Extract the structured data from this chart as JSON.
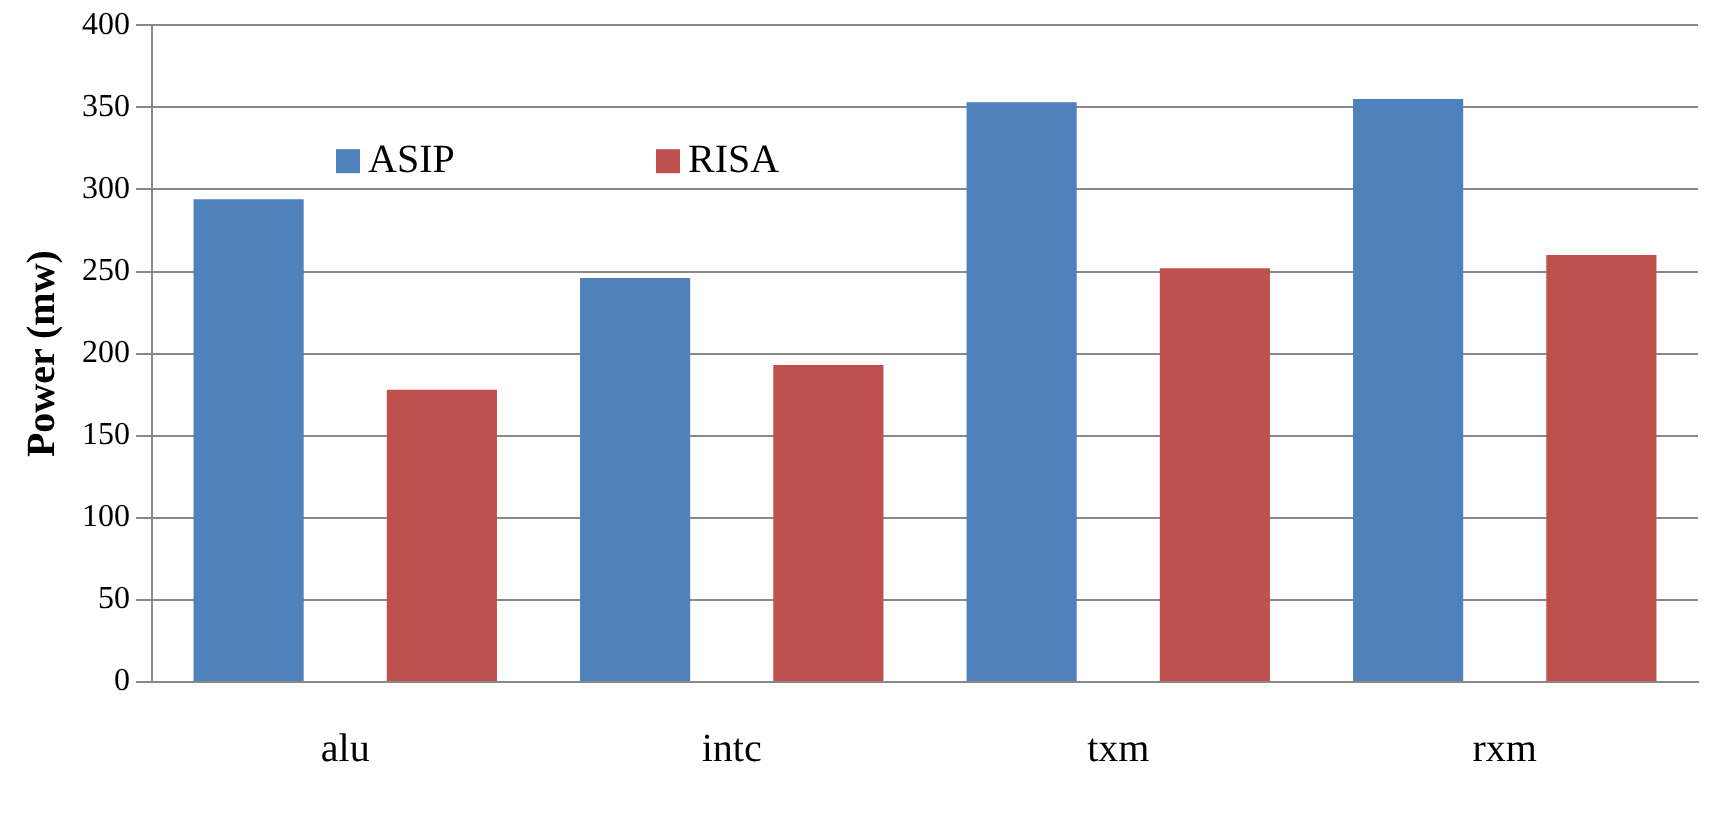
{
  "chart_data": {
    "type": "bar",
    "ylabel": "Power (mw)",
    "categories": [
      "alu",
      "intc",
      "txm",
      "rxm"
    ],
    "series": [
      {
        "name": "ASIP",
        "color": "#4f81bd",
        "values": [
          294,
          246,
          353,
          355
        ]
      },
      {
        "name": "RISA",
        "color": "#c0504d",
        "values": [
          178,
          193,
          252,
          260
        ]
      }
    ],
    "ylim": [
      0,
      400
    ],
    "yticks": [
      0,
      50,
      100,
      150,
      200,
      250,
      300,
      350,
      400
    ],
    "grid": "y",
    "legend": "top left"
  }
}
